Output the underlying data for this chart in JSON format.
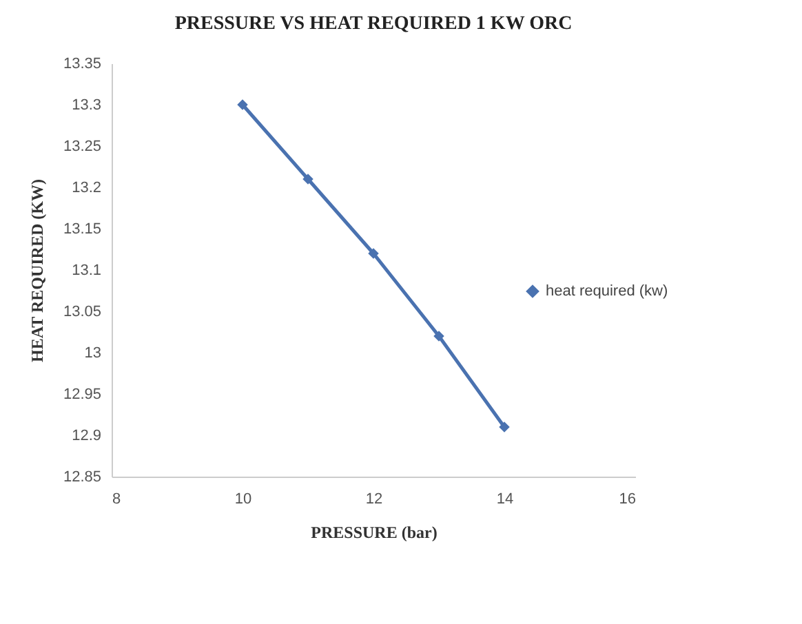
{
  "chart_data": {
    "type": "line",
    "title": "PRESSURE VS HEAT REQUIRED 1 KW ORC",
    "xlabel": "PRESSURE (bar)",
    "ylabel": "HEAT REQUIRED (KW)",
    "x": [
      10,
      11,
      12,
      13,
      14
    ],
    "series": [
      {
        "name": "heat required (kw)",
        "color": "#4a72b0",
        "values": [
          13.3,
          13.21,
          13.12,
          13.02,
          12.91
        ]
      }
    ],
    "xlim": [
      8,
      16
    ],
    "xticks": [
      8,
      10,
      12,
      14,
      16
    ],
    "ylim": [
      12.85,
      13.35
    ],
    "yticks": [
      12.85,
      12.9,
      12.95,
      13,
      13.05,
      13.1,
      13.15,
      13.2,
      13.25,
      13.3,
      13.35
    ],
    "grid": false,
    "legend": "right",
    "marker": "diamond",
    "line_style": "solid"
  }
}
